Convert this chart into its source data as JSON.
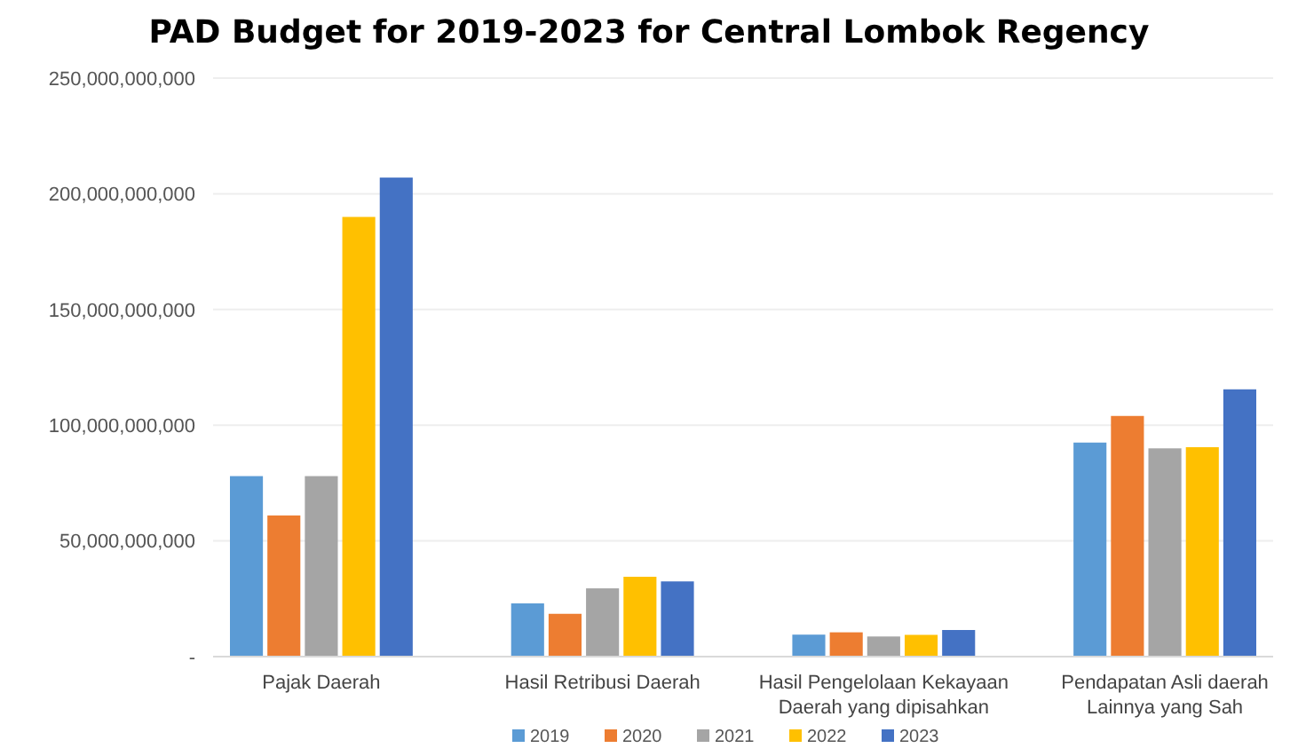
{
  "chart_data": {
    "type": "bar",
    "title": "PAD Budget for 2019-2023 for Central Lombok Regency",
    "categories": [
      "Pajak Daerah",
      "Hasil Retribusi Daerah",
      "Hasil Pengelolaan Kekayaan Daerah yang dipisahkan",
      "Pendapatan Asli daerah Lainnya yang Sah"
    ],
    "series": [
      {
        "name": "2019",
        "color": "#5b9bd5",
        "values": [
          78000000000,
          23000000000,
          9500000000,
          92500000000
        ]
      },
      {
        "name": "2020",
        "color": "#ed7d31",
        "values": [
          61000000000,
          18500000000,
          10500000000,
          104000000000
        ]
      },
      {
        "name": "2021",
        "color": "#a5a5a5",
        "values": [
          78000000000,
          29500000000,
          8700000000,
          90000000000
        ]
      },
      {
        "name": "2022",
        "color": "#ffc000",
        "values": [
          190000000000,
          34500000000,
          9400000000,
          90500000000
        ]
      },
      {
        "name": "2023",
        "color": "#4472c4",
        "values": [
          207000000000,
          32500000000,
          11500000000,
          115500000000
        ]
      }
    ],
    "ylim": [
      0,
      250000000000
    ],
    "yticks": [
      {
        "value": 0,
        "label": "-"
      },
      {
        "value": 50000000000,
        "label": "50,000,000,000"
      },
      {
        "value": 100000000000,
        "label": "100,000,000,000"
      },
      {
        "value": 150000000000,
        "label": "150,000,000,000"
      },
      {
        "value": 200000000000,
        "label": "200,000,000,000"
      },
      {
        "value": 250000000000,
        "label": "250,000,000,000"
      }
    ],
    "grid": "y",
    "legend": "bottom"
  }
}
